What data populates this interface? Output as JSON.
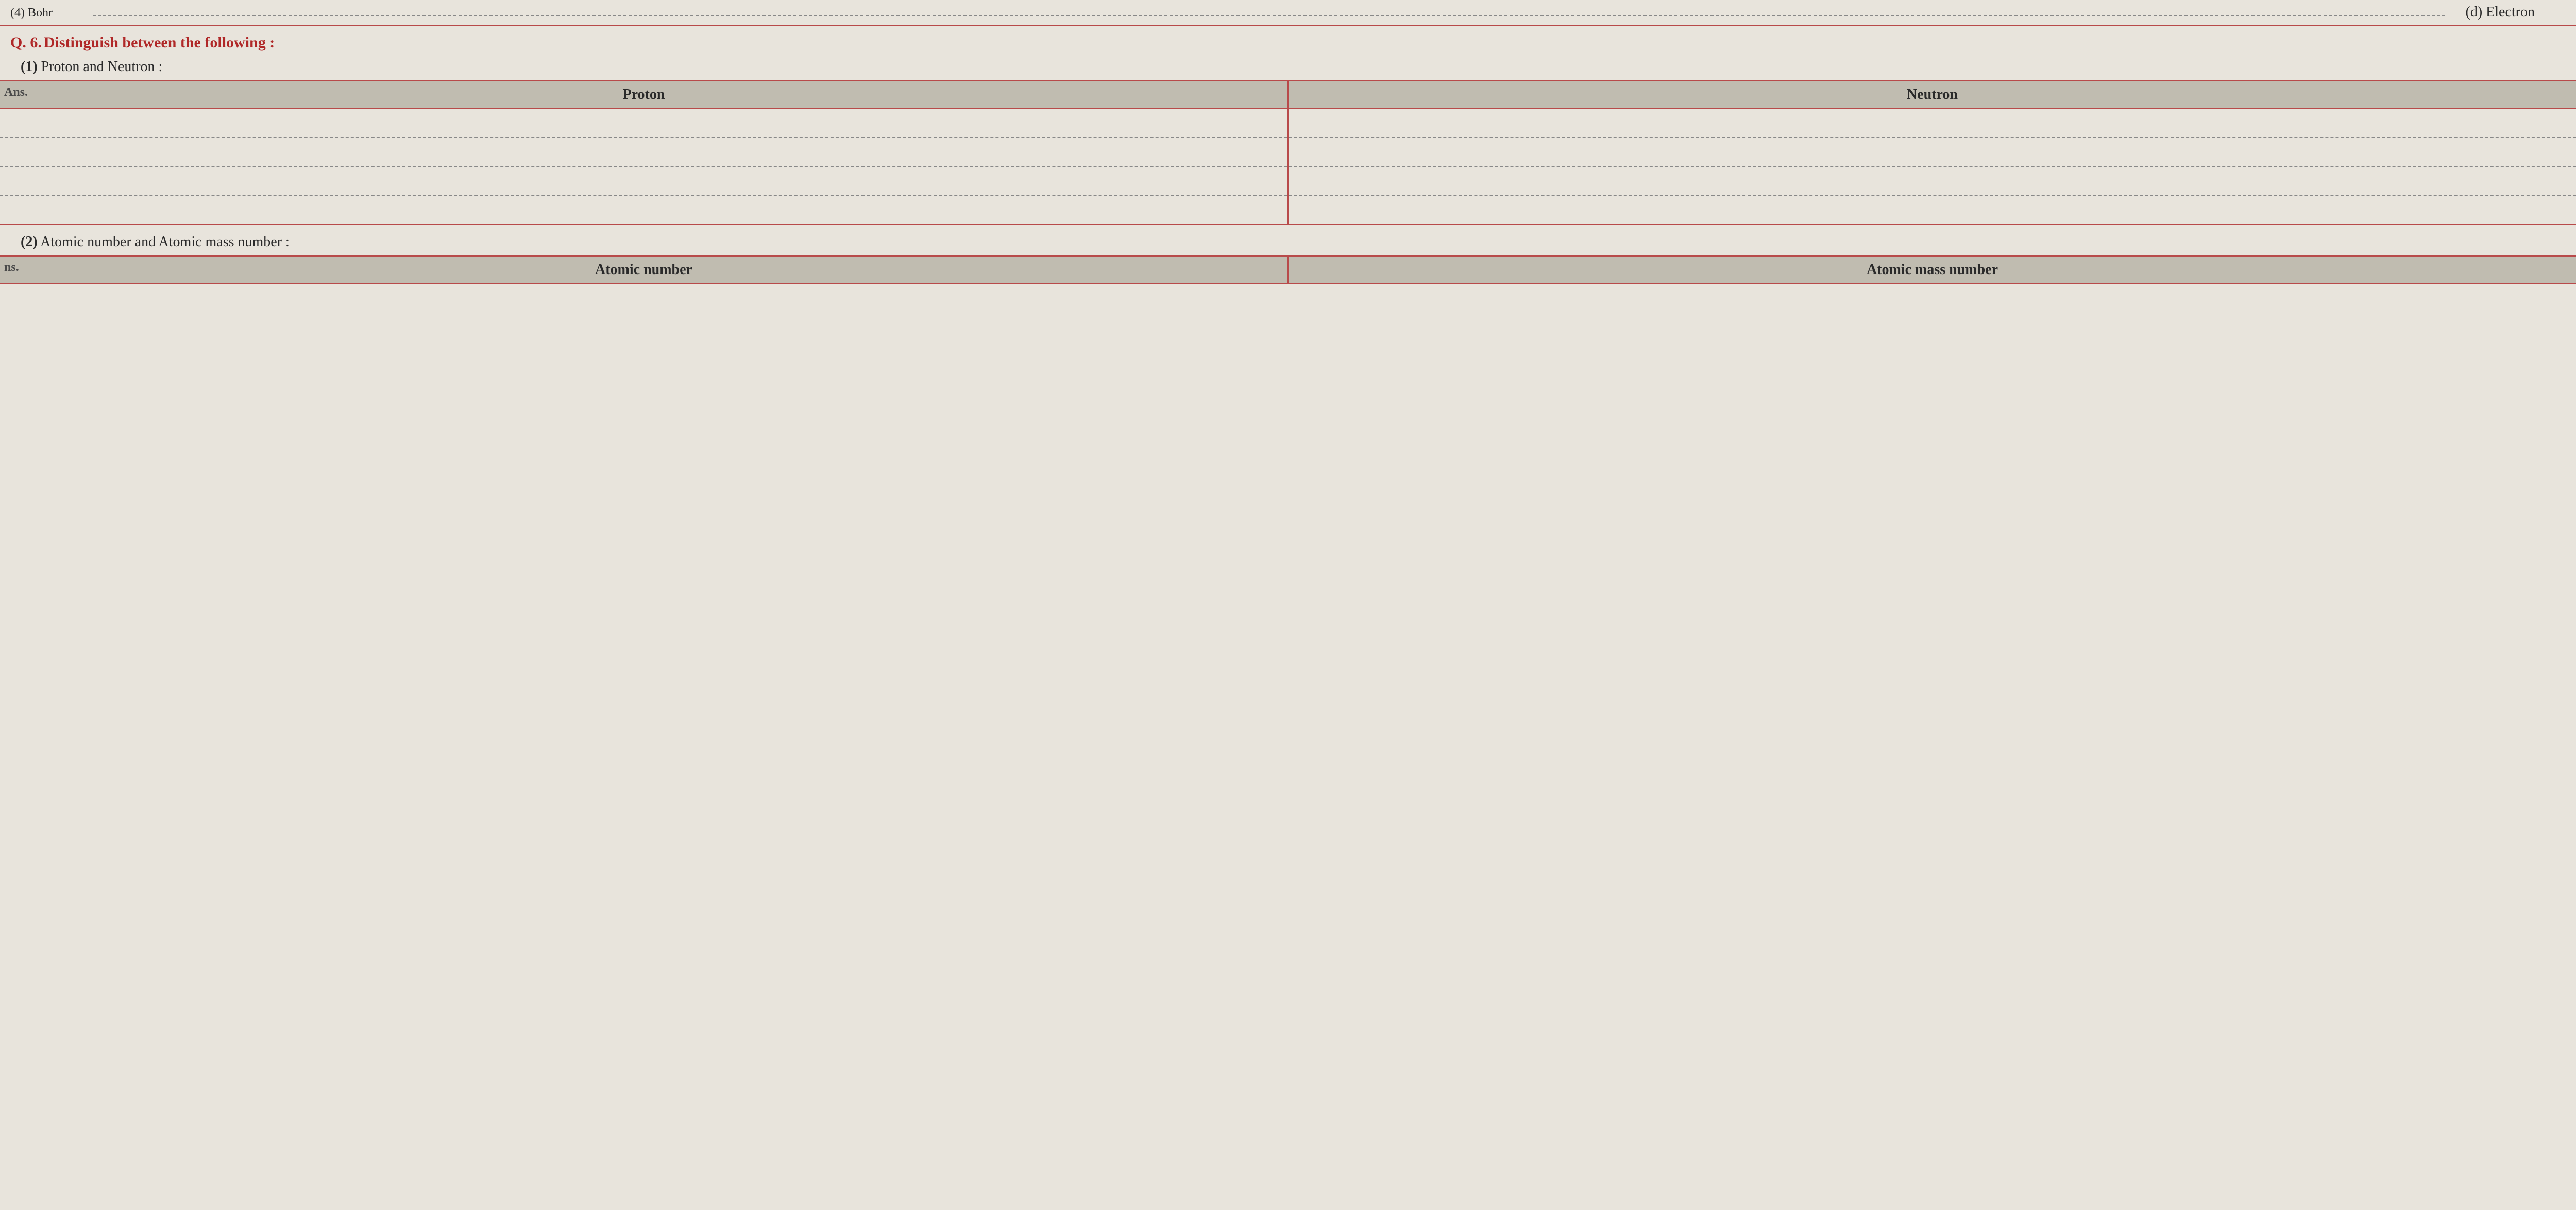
{
  "top_partial": {
    "left_label": "(4) Bohr",
    "right_label": "(d) Electron"
  },
  "question": {
    "number": "Q. 6.",
    "text": "Distinguish between the following :"
  },
  "sub1": {
    "num": "(1)",
    "text": "Proton and Neutron :",
    "ans_label": "Ans.",
    "col1_header": "Proton",
    "col2_header": "Neutron",
    "blank_rows": 4
  },
  "sub2": {
    "num": "(2)",
    "text": "Atomic number and Atomic mass number :",
    "ans_label": "ns.",
    "col1_header": "Atomic number",
    "col2_header": "Atomic mass number"
  },
  "colors": {
    "rule": "#b84a4a",
    "heading": "#b02828",
    "header_bg": "#c0bcb0",
    "page_bg": "#e8e4dc",
    "dash": "#888888",
    "text": "#2a2a2a"
  }
}
